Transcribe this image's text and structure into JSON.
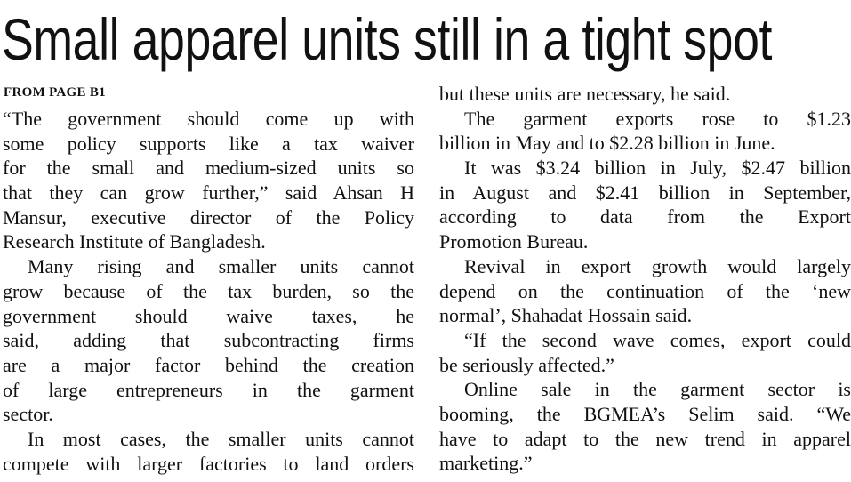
{
  "headline": "Small apparel units still in a tight spot",
  "kicker": "FROM PAGE B1",
  "columns": [
    {
      "paragraphs": [
        {
          "indent": false,
          "lines": [
            "“The government should come up with",
            "some policy supports like a tax waiver",
            "for the small and medium-sized units so",
            "that they can grow further,” said Ahsan H",
            "Mansur, executive director of the Policy",
            "Research Institute of Bangladesh."
          ]
        },
        {
          "indent": true,
          "lines": [
            "Many rising and smaller units cannot",
            "grow because of the tax burden, so the",
            "government should waive taxes, he",
            "said, adding that subcontracting firms",
            "are a major factor behind the creation",
            "of large entrepreneurs in the garment",
            "sector."
          ]
        },
        {
          "indent": true,
          "continues": true,
          "lines": [
            "In most cases, the smaller units cannot",
            "compete with larger factories to land orders"
          ]
        }
      ]
    },
    {
      "paragraphs": [
        {
          "indent": false,
          "lines": [
            "but these units are necessary, he said."
          ]
        },
        {
          "indent": true,
          "lines": [
            "The garment exports rose to $1.23",
            "billion in May and to $2.28 billion in June."
          ]
        },
        {
          "indent": true,
          "lines": [
            "It was $3.24 billion in July, $2.47 billion",
            "in August and $2.41 billion in September,",
            "according to data from the Export",
            "Promotion Bureau."
          ]
        },
        {
          "indent": true,
          "lines": [
            "Revival in export growth would largely",
            "depend on the continuation of the ‘new",
            "normal’, Shahadat Hossain said."
          ]
        },
        {
          "indent": true,
          "lines": [
            "“If the second wave comes, export could",
            "be seriously affected.”"
          ]
        },
        {
          "indent": true,
          "lines": [
            "Online sale in the garment sector is",
            "booming, the BGMEA’s Selim said. “We",
            "have to adapt to the new trend in apparel",
            "marketing.”"
          ]
        }
      ]
    }
  ]
}
